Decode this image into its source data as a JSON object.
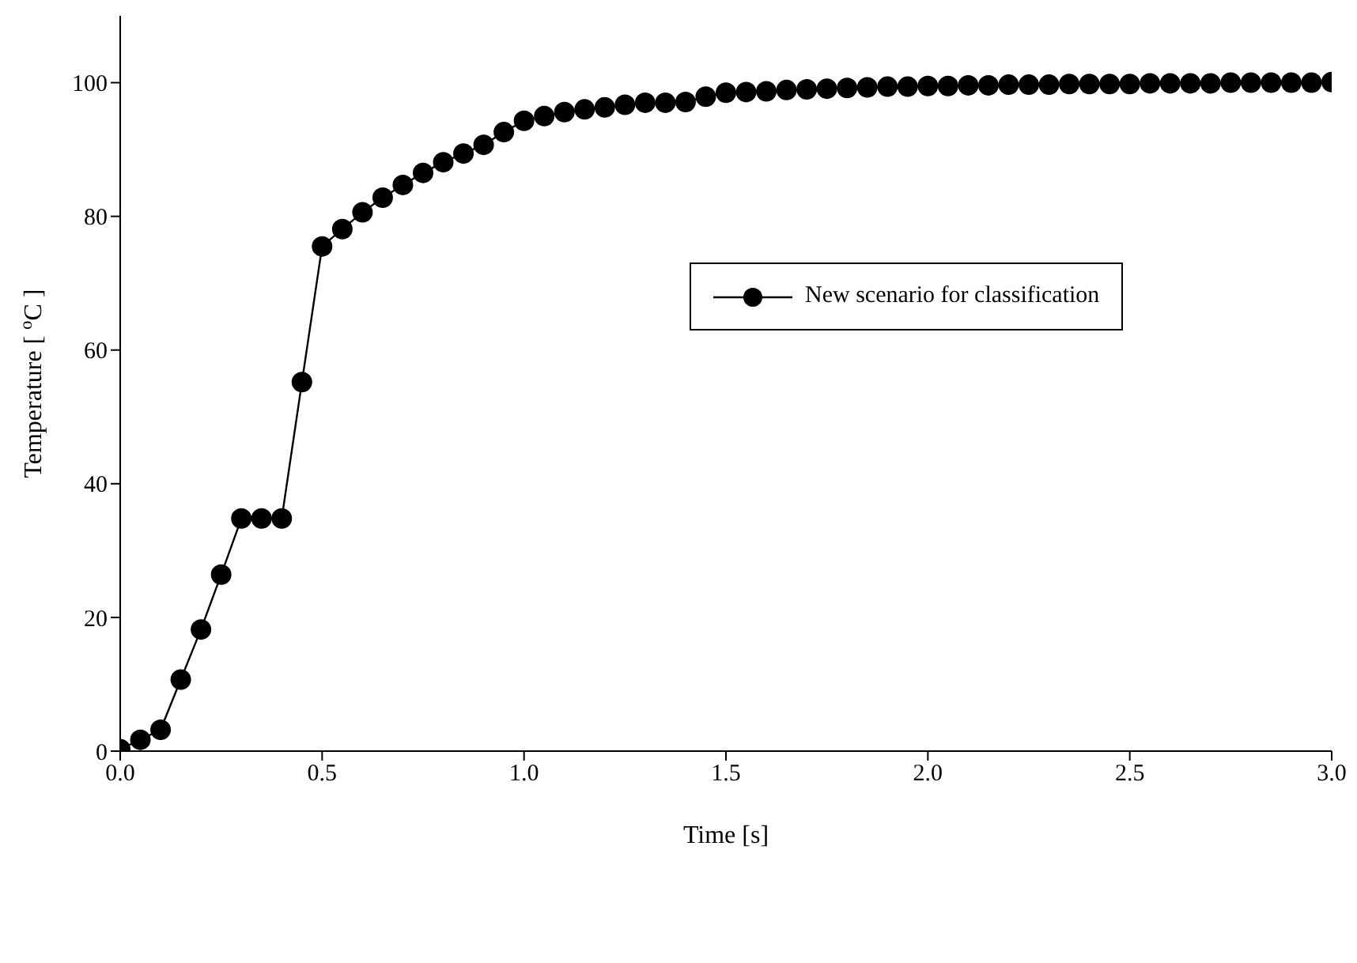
{
  "chart_data": {
    "type": "line",
    "xlabel": "Time [s]",
    "ylabel": "Temperature [ $^{o}$C ]",
    "x": [
      0,
      0.05,
      0.1,
      0.15,
      0.2,
      0.25,
      0.3,
      0.35,
      0.4,
      0.45,
      0.5,
      0.55,
      0.6,
      0.65,
      0.7,
      0.75,
      0.8,
      0.85,
      0.9,
      0.95,
      1.0,
      1.05,
      1.1,
      1.15,
      1.2,
      1.25,
      1.3,
      1.35,
      1.4,
      1.45,
      1.5,
      1.55,
      1.6,
      1.65,
      1.7,
      1.75,
      1.8,
      1.85,
      1.9,
      1.95,
      2.0,
      2.05,
      2.1,
      2.15,
      2.2,
      2.25,
      2.3,
      2.35,
      2.4,
      2.45,
      2.5,
      2.55,
      2.6,
      2.65,
      2.7,
      2.75,
      2.8,
      2.85,
      2.9,
      2.95,
      3.0
    ],
    "series": [
      {
        "name": "New scenario for classification",
        "color": "#000000",
        "values": [
          0.3,
          1.7,
          3.2,
          10.7,
          18.2,
          26.4,
          34.8,
          34.8,
          34.8,
          55.2,
          75.5,
          78.1,
          80.6,
          82.8,
          84.7,
          86.5,
          88.1,
          89.4,
          90.7,
          92.6,
          94.3,
          95.0,
          95.6,
          96.0,
          96.3,
          96.7,
          97.0,
          97.0,
          97.1,
          97.9,
          98.5,
          98.6,
          98.7,
          98.9,
          99.0,
          99.1,
          99.2,
          99.3,
          99.4,
          99.4,
          99.5,
          99.5,
          99.6,
          99.6,
          99.7,
          99.7,
          99.7,
          99.8,
          99.8,
          99.8,
          99.8,
          99.9,
          99.9,
          99.9,
          99.9,
          100.0,
          100.0,
          100.0,
          100.0,
          100.0,
          100.1
        ]
      }
    ],
    "xlim": [
      0,
      3.0
    ],
    "xticks": [
      {
        "value": 0,
        "label": "0.0"
      },
      {
        "value": 0.5,
        "label": "0.5"
      },
      {
        "value": 1.0,
        "label": "1.0"
      },
      {
        "value": 1.5,
        "label": "1.5"
      },
      {
        "value": 2.0,
        "label": "2.0"
      },
      {
        "value": 2.5,
        "label": "2.5"
      },
      {
        "value": 3.0,
        "label": "3.0"
      }
    ],
    "ylim": [
      0,
      110
    ],
    "yticks": [
      0,
      20,
      40,
      60,
      80,
      100
    ],
    "grid": false,
    "legend": "right",
    "marker": "circle",
    "line_style": "solid"
  }
}
